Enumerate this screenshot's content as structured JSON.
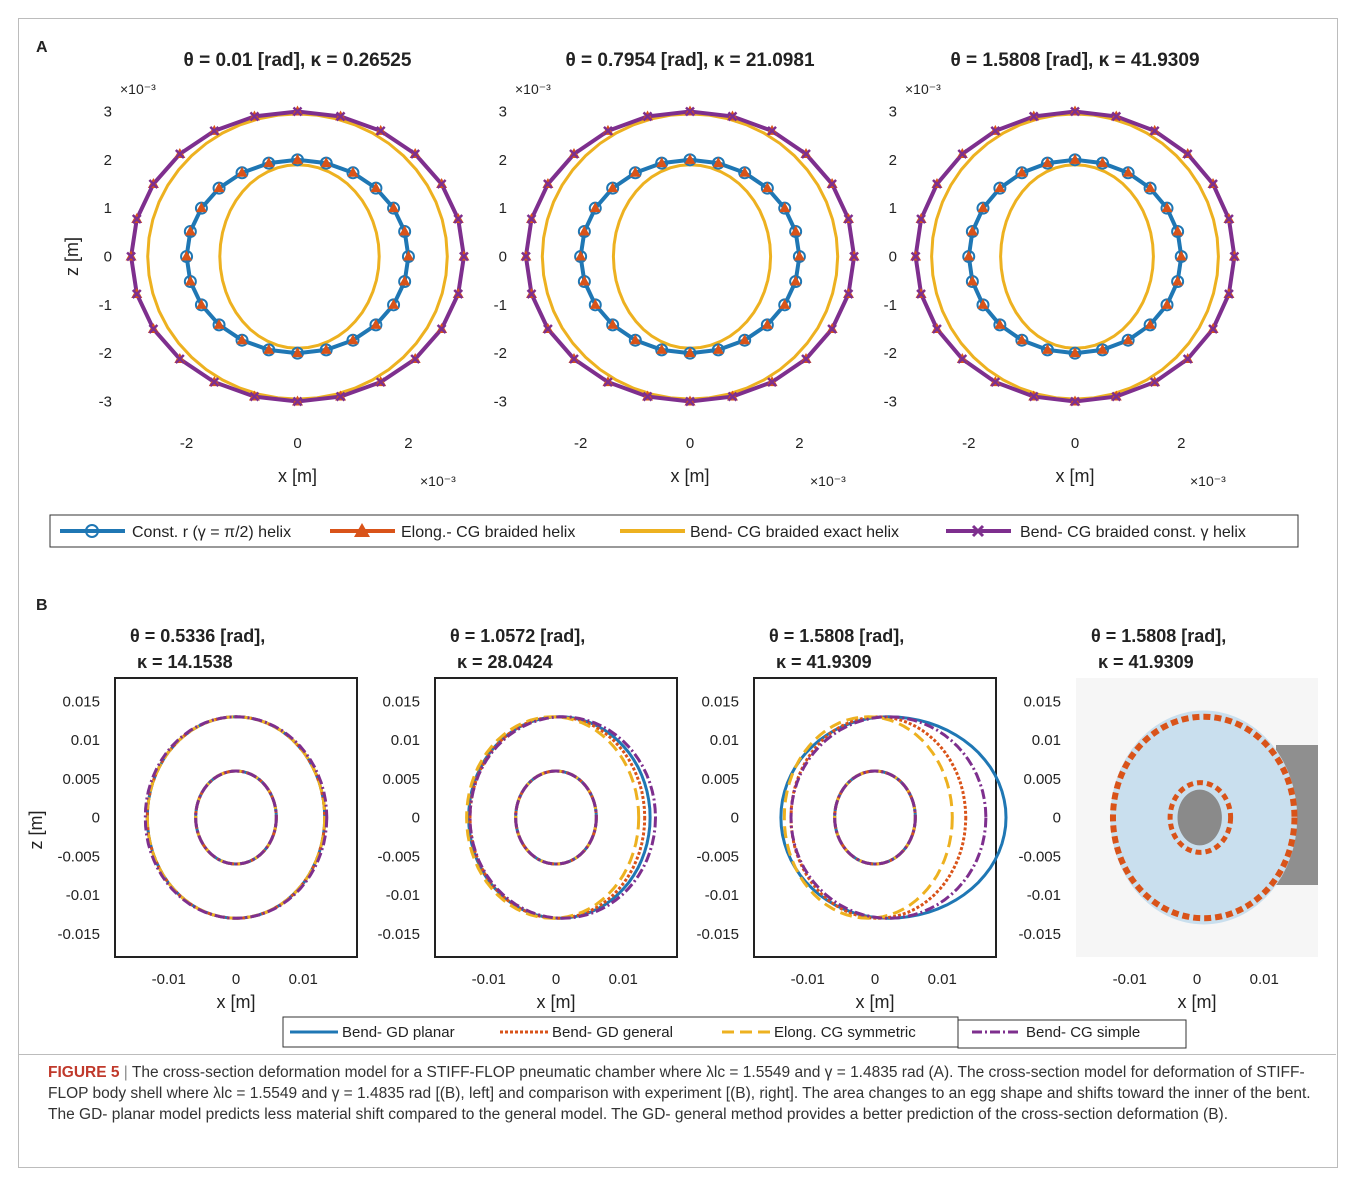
{
  "panel_labels": {
    "a": "A",
    "b": "B"
  },
  "panel_a": {
    "titles": [
      "θ = 0.01 [rad], κ = 0.26525",
      "θ = 0.7954 [rad], κ = 21.0981",
      "θ = 1.5808 [rad], κ = 41.9309"
    ],
    "xlabel": "x [m]",
    "ylabel": "z [m]",
    "exponent": "×10⁻³",
    "legend": [
      "Const. r (γ = π/2) helix",
      "Elong.- CG braided helix",
      "Bend- CG braided exact helix",
      "Bend- CG braided const. γ helix"
    ]
  },
  "panel_b": {
    "titles": [
      {
        "line1": "θ = 0.5336 [rad],",
        "line2": "κ = 14.1538"
      },
      {
        "line1": "θ = 1.0572 [rad],",
        "line2": "κ = 28.0424"
      },
      {
        "line1": "θ = 1.5808 [rad],",
        "line2": "κ = 41.9309"
      },
      {
        "line1": "θ = 1.5808 [rad],",
        "line2": "κ = 41.9309"
      }
    ],
    "xlabel": "x [m]",
    "ylabel": "z [m]",
    "legend": [
      "Bend- GD planar",
      "Bend- GD general",
      "Elong. CG symmetric",
      "Bend- CG simple"
    ]
  },
  "colors": {
    "blue": "#1f77b4",
    "orange": "#d95319",
    "yellow": "#edb120",
    "purple": "#7e2f8e"
  },
  "caption": {
    "label": "FIGURE 5",
    "text": "The cross-section deformation model for a STIFF-FLOP pneumatic chamber where λlc = 1.5549 and γ = 1.4835 rad (A). The cross-section model for deformation of STIFF-FLOP body shell where λlc = 1.5549 and γ = 1.4835 rad [(B), left] and comparison with experiment [(B), right]. The area changes to an egg shape and shifts toward the inner of the bent. The GD- planar model predicts less material shift compared to the general model. The GD- general method provides a better prediction of the cross-section deformation (B)."
  },
  "chart_data": [
    {
      "type": "line",
      "title": "θ = 0.01 [rad], κ = 0.26525",
      "xlabel": "x [m]",
      "ylabel": "z [m]",
      "xlim": [
        -3.2,
        3.2
      ],
      "ylim": [
        -3.3,
        3.3
      ],
      "xticks": [
        -2,
        0,
        2
      ],
      "yticks": [
        -3,
        -2,
        -1,
        0,
        1,
        2,
        3
      ],
      "series": [
        {
          "name": "Const. r (γ = π/2) helix",
          "outer_radius": 3.0,
          "inner_radius": 2.0
        },
        {
          "name": "Elong.- CG braided helix",
          "outer_radius": 3.0,
          "inner_radius": 2.0
        },
        {
          "name": "Bend- CG braided exact helix",
          "outer": {
            "rx": 2.7,
            "ry": 2.95
          },
          "inner": {
            "rx": 1.4,
            "ry": 1.9
          }
        },
        {
          "name": "Bend- CG braided const. γ helix",
          "outer_radius": 3.0,
          "inner_radius": 2.0
        }
      ]
    },
    {
      "type": "line",
      "title": "θ = 0.7954 [rad], κ = 21.0981",
      "xlabel": "x [m]",
      "ylabel": "z [m]",
      "xlim": [
        -3.2,
        3.2
      ],
      "ylim": [
        -3.3,
        3.3
      ],
      "xticks": [
        -2,
        0,
        2
      ],
      "yticks": [
        -3,
        -2,
        -1,
        0,
        1,
        2,
        3
      ],
      "series": [
        {
          "name": "Const. r (γ = π/2) helix",
          "outer_radius": 3.0,
          "inner_radius": 2.0
        },
        {
          "name": "Elong.- CG braided helix",
          "outer_radius": 3.0,
          "inner_radius": 2.0
        },
        {
          "name": "Bend- CG braided exact helix",
          "outer": {
            "rx": 2.7,
            "ry": 2.95
          },
          "inner": {
            "rx": 1.4,
            "ry": 1.9
          }
        },
        {
          "name": "Bend- CG braided const. γ helix",
          "outer_radius": 3.0,
          "inner_radius": 2.0
        }
      ]
    },
    {
      "type": "line",
      "title": "θ = 1.5808 [rad], κ = 41.9309",
      "xlabel": "x [m]",
      "ylabel": "z [m]",
      "xlim": [
        -3.2,
        3.2
      ],
      "ylim": [
        -3.3,
        3.3
      ],
      "xticks": [
        -2,
        0,
        2
      ],
      "yticks": [
        -3,
        -2,
        -1,
        0,
        1,
        2,
        3
      ],
      "series": [
        {
          "name": "Const. r (γ = π/2) helix",
          "outer_radius": 3.0,
          "inner_radius": 2.0
        },
        {
          "name": "Elong.- CG braided helix",
          "outer_radius": 3.0,
          "inner_radius": 2.0
        },
        {
          "name": "Bend- CG braided exact helix",
          "outer": {
            "rx": 2.7,
            "ry": 2.95
          },
          "inner": {
            "rx": 1.4,
            "ry": 1.9
          }
        },
        {
          "name": "Bend- CG braided const. γ helix",
          "outer_radius": 3.0,
          "inner_radius": 2.0
        }
      ]
    },
    {
      "type": "line",
      "title": "θ = 0.5336 [rad], κ = 14.1538",
      "xlabel": "x [m]",
      "ylabel": "z [m]",
      "xlim": [
        -0.018,
        0.018
      ],
      "ylim": [
        -0.018,
        0.018
      ],
      "xticks": [
        -0.01,
        0,
        0.01
      ],
      "yticks": [
        -0.015,
        -0.01,
        -0.005,
        0,
        0.005,
        0.01,
        0.015
      ],
      "series": [
        {
          "name": "Bend- GD planar",
          "outer": {
            "rx": 0.0132,
            "ry": 0.013
          },
          "inner": {
            "rx": 0.006,
            "ry": 0.006
          }
        },
        {
          "name": "Bend- GD general",
          "outer": {
            "rx": 0.0132,
            "ry": 0.013
          },
          "inner": {
            "rx": 0.006,
            "ry": 0.006
          }
        },
        {
          "name": "Elong. CG symmetric",
          "outer": {
            "rx": 0.0132,
            "ry": 0.013
          },
          "inner": {
            "rx": 0.006,
            "ry": 0.006
          }
        },
        {
          "name": "Bend- CG simple",
          "outer": {
            "rx": 0.0135,
            "ry": 0.013
          },
          "inner": {
            "rx": 0.006,
            "ry": 0.006
          }
        }
      ]
    },
    {
      "type": "line",
      "title": "θ = 1.0572 [rad], κ = 28.0424",
      "xlabel": "x [m]",
      "ylabel": "z [m]",
      "xlim": [
        -0.018,
        0.018
      ],
      "ylim": [
        -0.018,
        0.018
      ],
      "xticks": [
        -0.01,
        0,
        0.01
      ],
      "yticks": [
        -0.015,
        -0.01,
        -0.005,
        0,
        0.005,
        0.01,
        0.015
      ],
      "series": [
        {
          "name": "Bend- GD planar",
          "outer": {
            "cx": 0.0005,
            "rx": 0.0135,
            "ry": 0.013
          },
          "inner": {
            "rx": 0.006,
            "ry": 0.006
          }
        },
        {
          "name": "Bend- GD general",
          "outer": {
            "cx": 0.0002,
            "rx": 0.013,
            "ry": 0.013
          },
          "inner": {
            "rx": 0.006,
            "ry": 0.006
          }
        },
        {
          "name": "Elong. CG symmetric",
          "outer": {
            "cx": -0.0005,
            "rx": 0.0128,
            "ry": 0.013
          },
          "inner": {
            "rx": 0.006,
            "ry": 0.006
          }
        },
        {
          "name": "Bend- CG simple",
          "outer": {
            "cx": 0.001,
            "rx": 0.0138,
            "ry": 0.013
          },
          "inner": {
            "rx": 0.006,
            "ry": 0.006
          }
        }
      ]
    },
    {
      "type": "line",
      "title": "θ = 1.5808 [rad], κ = 41.9309",
      "xlabel": "x [m]",
      "ylabel": "z [m]",
      "xlim": [
        -0.018,
        0.018
      ],
      "ylim": [
        -0.018,
        0.018
      ],
      "xticks": [
        -0.01,
        0,
        0.01
      ],
      "yticks": [
        -0.015,
        -0.01,
        -0.005,
        0,
        0.005,
        0.01,
        0.015
      ],
      "series": [
        {
          "name": "Bend- GD planar",
          "outer": {
            "cx": 0.002,
            "rx": 0.016,
            "ry": 0.013
          },
          "inner": {
            "rx": 0.006,
            "ry": 0.006
          }
        },
        {
          "name": "Bend- GD general",
          "outer": {
            "cx": 0.0005,
            "rx": 0.013,
            "ry": 0.013
          },
          "inner": {
            "rx": 0.006,
            "ry": 0.006
          }
        },
        {
          "name": "Elong. CG symmetric",
          "outer": {
            "cx": -0.001,
            "rx": 0.0125,
            "ry": 0.013
          },
          "inner": {
            "rx": 0.006,
            "ry": 0.006
          }
        },
        {
          "name": "Bend- CG simple",
          "outer": {
            "cx": 0.002,
            "rx": 0.0145,
            "ry": 0.013
          },
          "inner": {
            "rx": 0.006,
            "ry": 0.006
          }
        }
      ]
    },
    {
      "type": "line",
      "title": "θ = 1.5808 [rad], κ = 41.9309",
      "xlabel": "x [m]",
      "xlim": [
        -0.018,
        0.018
      ],
      "ylim": [
        -0.018,
        0.018
      ],
      "xticks": [
        -0.01,
        0,
        0.01
      ],
      "series": [
        {
          "name": "Bend- GD general",
          "outer": {
            "cx": 0.001,
            "rx": 0.0135,
            "ry": 0.013
          },
          "inner": {
            "cx": 0.0005,
            "rx": 0.0045,
            "ry": 0.0045
          }
        }
      ]
    }
  ]
}
